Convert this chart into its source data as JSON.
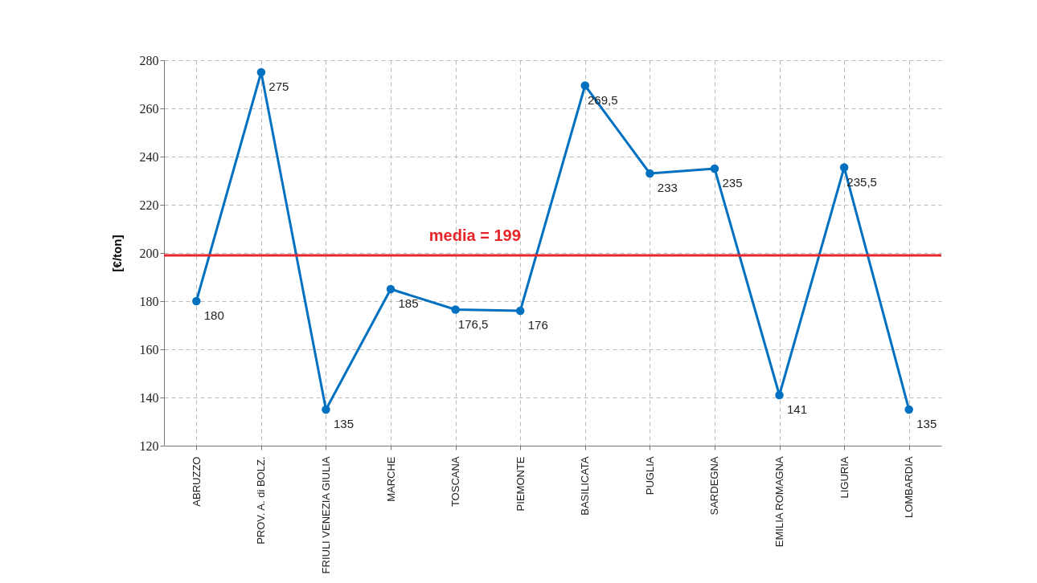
{
  "chart_data": {
    "type": "line",
    "ylabel": "[€/ton]",
    "categories": [
      "ABRUZZO",
      "PROV. A. di BOLZ.",
      "FRIULI VENEZIA GIULIA",
      "MARCHE",
      "TOSCANA",
      "PIEMONTE",
      "BASILICATA",
      "PUGLIA",
      "SARDEGNA",
      "EMILIA ROMAGNA",
      "LIGURIA",
      "LOMBARDIA"
    ],
    "series": [
      {
        "color": "#0070c0",
        "values": [
          180,
          275,
          135,
          185,
          176.5,
          176,
          269.5,
          233,
          235,
          141,
          235.5,
          135
        ],
        "value_labels": [
          "180",
          "275",
          "135",
          "185",
          "176,5",
          "176",
          "269,5",
          "233",
          "235",
          "141",
          "235,5",
          "135"
        ]
      }
    ],
    "ylim": [
      120,
      280
    ],
    "yticks": [
      120,
      140,
      160,
      180,
      200,
      220,
      240,
      260,
      280
    ],
    "ref_lines": [
      {
        "axis": "y",
        "value": 199,
        "label": "media = 199",
        "color": "#e8262a"
      }
    ],
    "grid": true,
    "marker": "circle",
    "line_style": "solid"
  }
}
